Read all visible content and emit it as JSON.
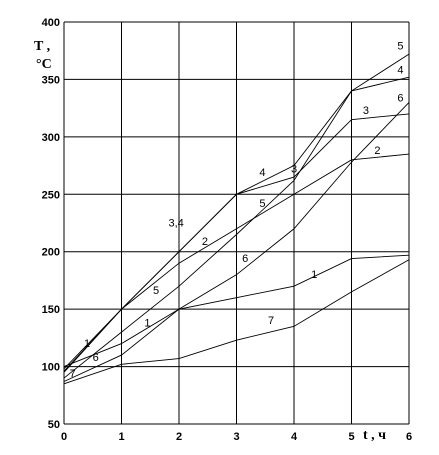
{
  "chart_data": {
    "type": "line",
    "ylabel_line1": "T ,",
    "ylabel_line2": "°C",
    "xlabel": "t , ч",
    "xlim": [
      0,
      6
    ],
    "ylim": [
      50,
      400
    ],
    "grid": true,
    "x_ticks": [
      "0",
      "1",
      "2",
      "3",
      "4",
      "5",
      "6"
    ],
    "y_ticks": [
      "50",
      "100",
      "150",
      "200",
      "250",
      "300",
      "350",
      "400"
    ],
    "x_tick_values": [
      0,
      1,
      2,
      3,
      4,
      5,
      6
    ],
    "y_tick_values": [
      50,
      100,
      150,
      200,
      250,
      300,
      350,
      400
    ],
    "x": [
      0,
      1,
      2,
      3,
      4,
      5,
      6
    ],
    "series": [
      {
        "name": "1",
        "values": [
          100,
          120,
          150,
          160,
          170,
          194,
          197
        ]
      },
      {
        "name": "2",
        "values": [
          95,
          150,
          190,
          220,
          250,
          280,
          285
        ]
      },
      {
        "name": "3",
        "values": [
          98,
          150,
          200,
          250,
          265,
          315,
          320
        ]
      },
      {
        "name": "4",
        "values": [
          96,
          150,
          200,
          250,
          275,
          340,
          352
        ]
      },
      {
        "name": "5",
        "values": [
          90,
          130,
          170,
          215,
          262,
          340,
          372
        ]
      },
      {
        "name": "6",
        "values": [
          87,
          110,
          150,
          180,
          220,
          278,
          330
        ]
      },
      {
        "name": "7",
        "values": [
          85,
          102,
          107,
          123,
          135,
          165,
          193
        ]
      }
    ],
    "annotations": [
      {
        "text": "1",
        "x": 0.4,
        "y": 117
      },
      {
        "text": "6",
        "x": 0.55,
        "y": 105
      },
      {
        "text": "7",
        "x": 0.15,
        "y": 91
      },
      {
        "text": "1",
        "x": 1.45,
        "y": 135
      },
      {
        "text": "5",
        "x": 1.6,
        "y": 163
      },
      {
        "text": "3,4",
        "x": 1.95,
        "y": 222
      },
      {
        "text": "2",
        "x": 2.45,
        "y": 206
      },
      {
        "text": "6",
        "x": 3.15,
        "y": 191
      },
      {
        "text": "5",
        "x": 3.45,
        "y": 239
      },
      {
        "text": "7",
        "x": 3.6,
        "y": 137
      },
      {
        "text": "1",
        "x": 4.35,
        "y": 177
      },
      {
        "text": "4",
        "x": 3.45,
        "y": 266
      },
      {
        "text": "3",
        "x": 4.0,
        "y": 269
      },
      {
        "text": "3",
        "x": 5.25,
        "y": 320
      },
      {
        "text": "2",
        "x": 5.45,
        "y": 285
      },
      {
        "text": "5",
        "x": 5.85,
        "y": 376
      },
      {
        "text": "4",
        "x": 5.85,
        "y": 355
      },
      {
        "text": "6",
        "x": 5.85,
        "y": 331
      }
    ]
  }
}
